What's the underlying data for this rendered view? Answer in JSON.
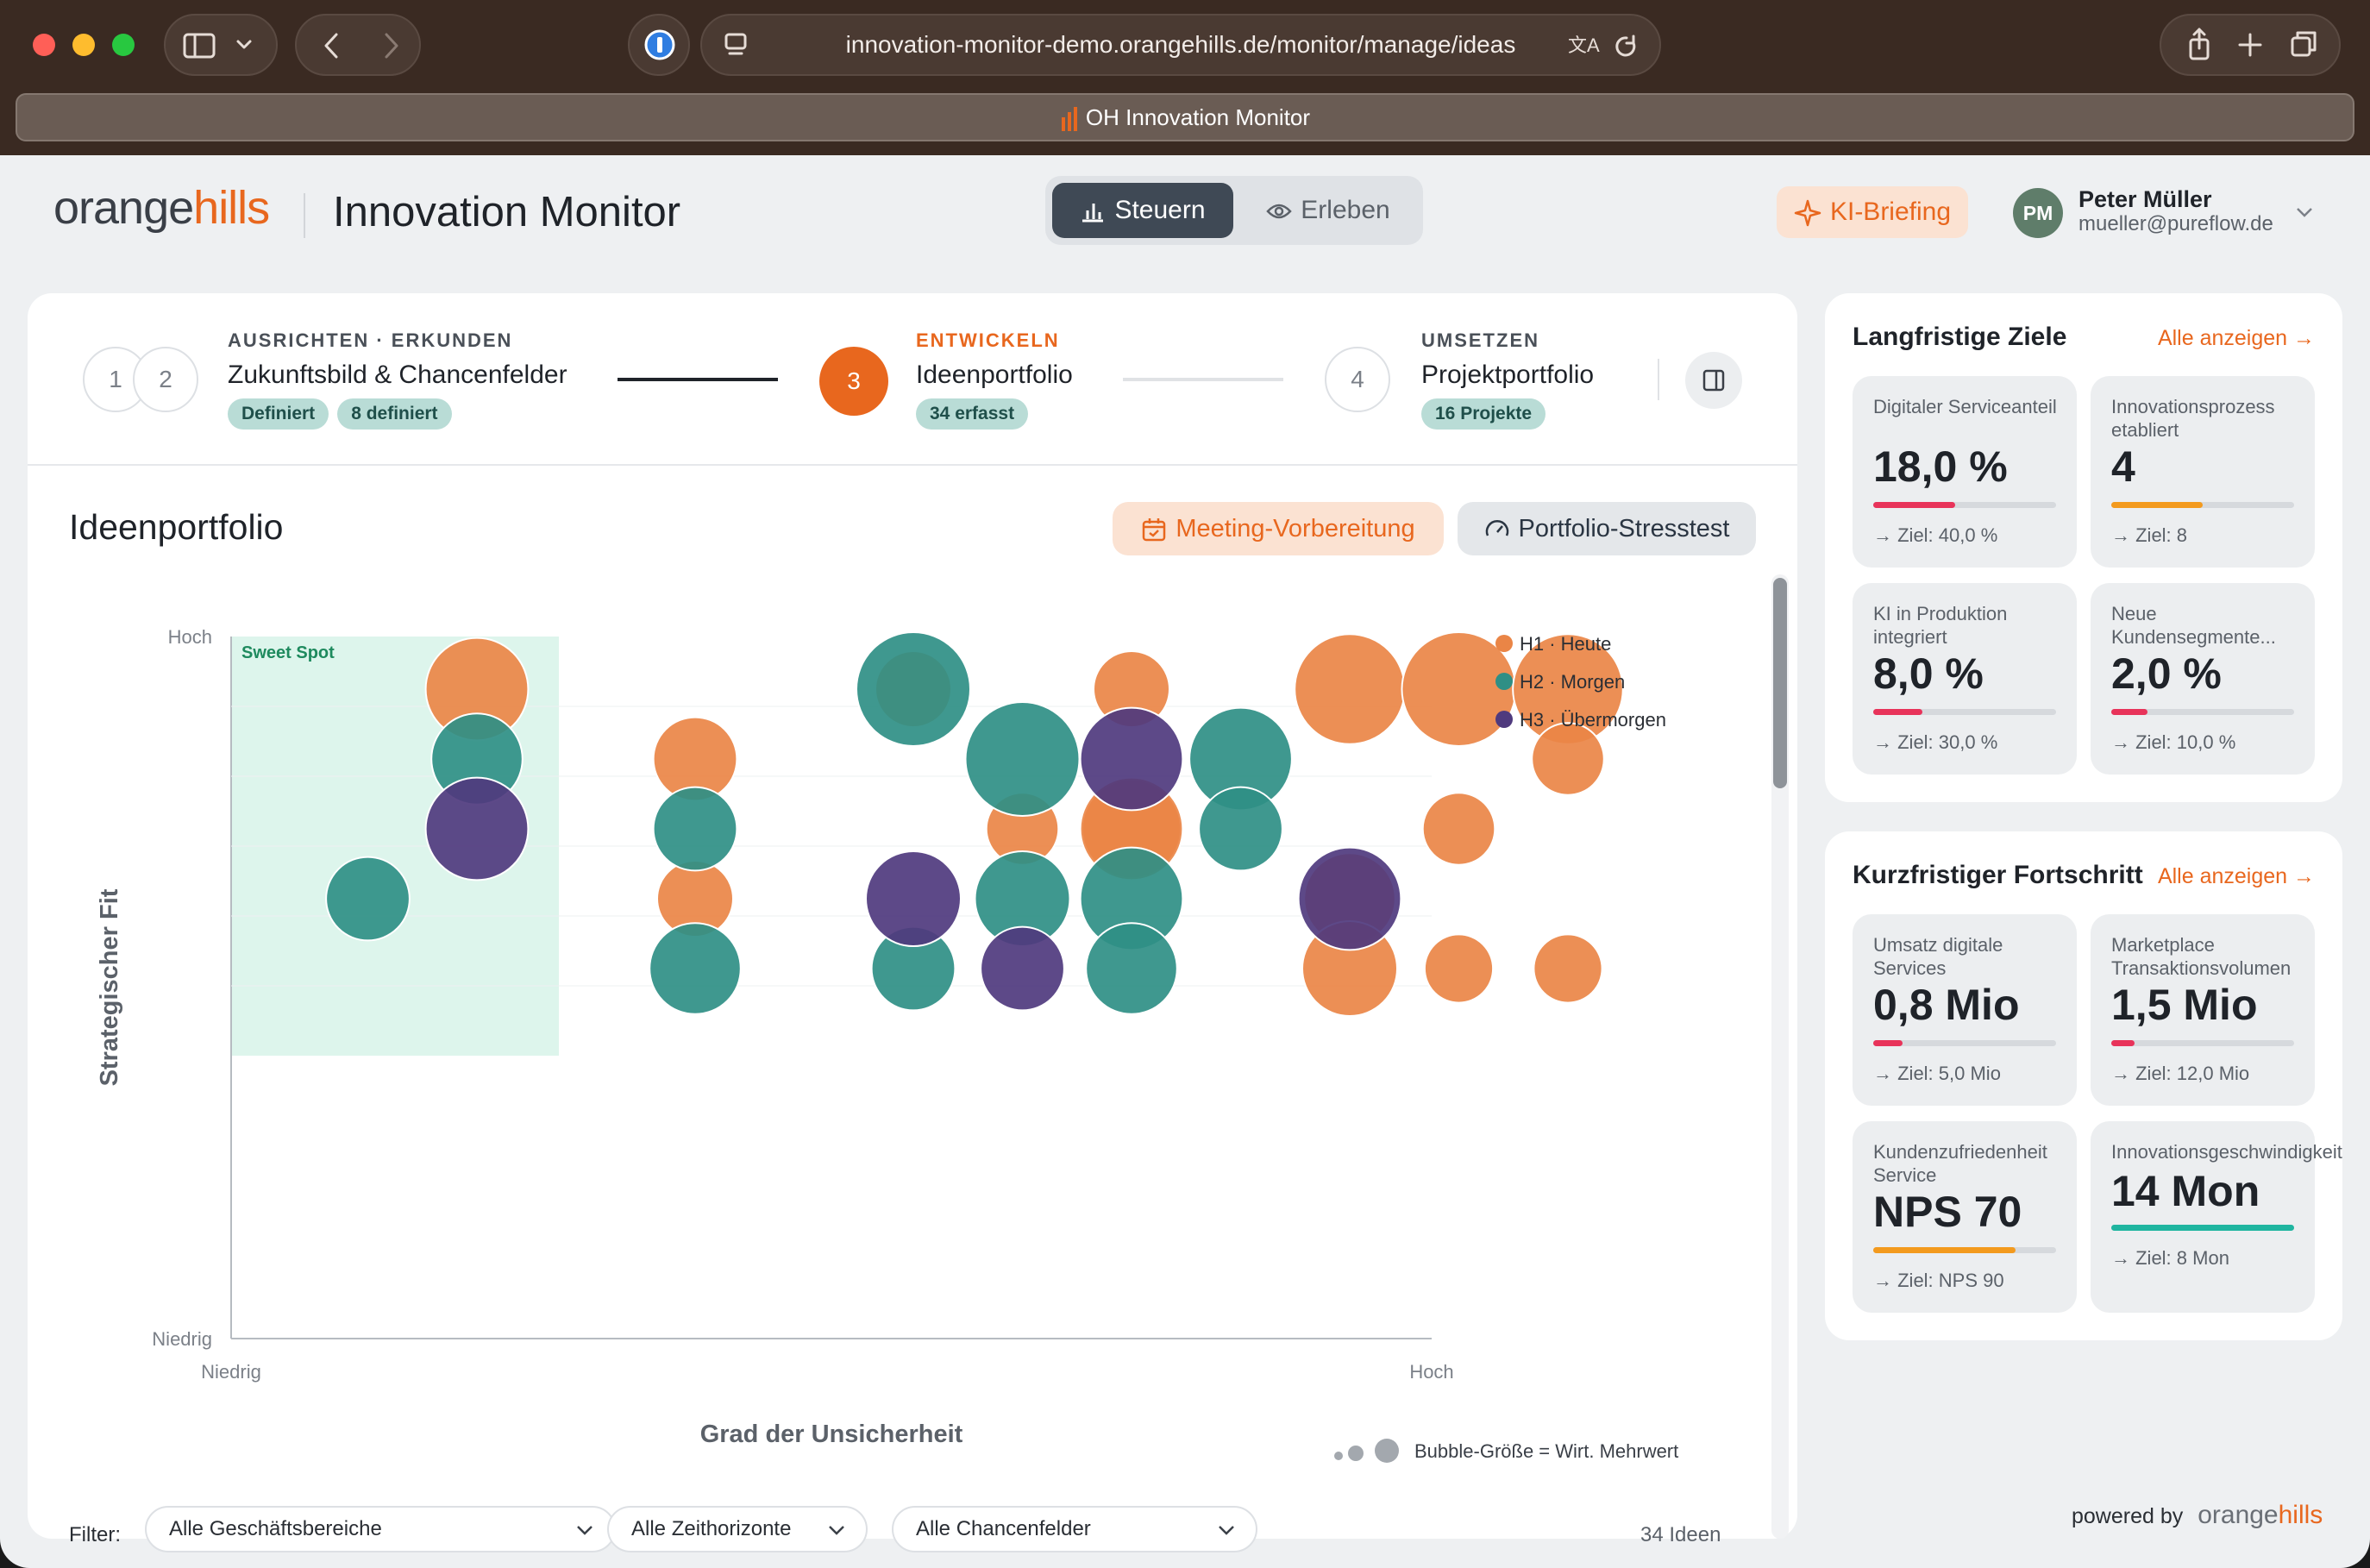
{
  "browser": {
    "url": "innovation-monitor-demo.orangehills.de/monitor/manage/ideas",
    "tab_title": "OH Innovation Monitor"
  },
  "header": {
    "logo_orange": "orange",
    "logo_hills": "hills",
    "app_title": "Innovation Monitor",
    "toggle_steuern": "Steuern",
    "toggle_erleben": "Erleben",
    "ki_briefing": "KI-Briefing",
    "user_initials": "PM",
    "user_name": "Peter Müller",
    "user_email": "mueller@pureflow.de"
  },
  "stepper": {
    "step1": "1",
    "step2": "2",
    "step12_label": "AUSRICHTEN · ERKUNDEN",
    "step12_title": "Zukunftsbild & Chancenfelder",
    "step12_pill1": "Definiert",
    "step12_pill2": "8 definiert",
    "step3": "3",
    "step3_label": "ENTWICKELN",
    "step3_title": "Ideenportfolio",
    "step3_pill": "34 erfasst",
    "step4": "4",
    "step4_label": "UMSETZEN",
    "step4_title": "Projektportfolio",
    "step4_pill": "16 Projekte"
  },
  "portfolio": {
    "title": "Ideenportfolio",
    "btn_meeting": "Meeting-Vorbereitung",
    "btn_stress": "Portfolio-Stresstest",
    "bubble_note": "Bubble-Größe = Wirt. Mehrwert"
  },
  "filters": {
    "label": "Filter:",
    "f1": "Alle Geschäftsbereiche",
    "f2": "Alle Zeithorizonte",
    "f3": "Alle Chancenfelder",
    "count": "34 Ideen"
  },
  "colors": {
    "h1": "#ea8546",
    "h2": "#2f8f85",
    "h3": "#4f3a7e",
    "accent": "#e8671e"
  },
  "chart_data": {
    "type": "scatter",
    "xlabel": "Grad der Unsicherheit",
    "ylabel": "Strategischer Fit",
    "x_ticks": [
      "Niedrig",
      "Hoch"
    ],
    "y_ticks": [
      "Hoch",
      "Niedrig"
    ],
    "annotation": "Sweet Spot",
    "legend": [
      "H1 · Heute",
      "H2 · Morgen",
      "H3 · Übermorgen"
    ],
    "series": [
      {
        "name": "H1 · Heute",
        "points": [
          [
            2,
            1,
            0.85
          ],
          [
            4,
            2,
            0.6
          ],
          [
            6,
            1,
            0.5
          ],
          [
            8,
            1,
            0.5
          ],
          [
            4,
            4,
            0.5
          ],
          [
            8,
            3,
            0.8
          ],
          [
            10,
            1,
            0.95
          ],
          [
            11,
            1,
            1
          ],
          [
            12,
            1,
            0.95
          ],
          [
            12,
            2,
            0.45
          ],
          [
            7,
            3,
            0.45
          ],
          [
            8,
            3,
            0.85
          ],
          [
            10,
            4,
            0.7
          ],
          [
            10,
            5,
            0.75
          ],
          [
            11,
            3,
            0.45
          ],
          [
            11,
            5,
            0.4
          ],
          [
            12,
            5,
            0.4
          ]
        ]
      },
      {
        "name": "H2 · Morgen",
        "points": [
          [
            2,
            2,
            0.7
          ],
          [
            4,
            3,
            0.6
          ],
          [
            1,
            4,
            0.6
          ],
          [
            6,
            1,
            1
          ],
          [
            7,
            2,
            1
          ],
          [
            9,
            2,
            0.85
          ],
          [
            9,
            3,
            0.6
          ],
          [
            7,
            4,
            0.75
          ],
          [
            8,
            4,
            0.85
          ],
          [
            4,
            5,
            0.7
          ],
          [
            6,
            5,
            0.6
          ],
          [
            8,
            5,
            0.7
          ]
        ]
      },
      {
        "name": "H3 · Übermorgen",
        "points": [
          [
            2,
            3,
            0.85
          ],
          [
            8,
            2,
            0.85
          ],
          [
            6,
            4,
            0.75
          ],
          [
            10,
            4,
            0.85
          ],
          [
            7,
            5,
            0.6
          ]
        ]
      }
    ]
  },
  "right": {
    "long_title": "Langfristige Ziele",
    "long_link": "Alle anzeigen →",
    "short_title": "Kurzfristiger Fortschritt",
    "short_link": "Alle anzeigen →",
    "kpis": [
      {
        "label": "Digitaler Serviceanteil",
        "value": "18,0 %",
        "goal": "→ Ziel: 40,0 %",
        "progress": 0.45,
        "color": "#e8335a"
      },
      {
        "label": "Innovationsprozess etabliert",
        "value": "4",
        "goal": "→ Ziel: 8",
        "progress": 0.5,
        "color": "#f39a1e"
      },
      {
        "label": "KI in Produktion integriert",
        "value": "8,0 %",
        "goal": "→ Ziel: 30,0 %",
        "progress": 0.27,
        "color": "#e8335a"
      },
      {
        "label": "Neue Kundensegmente...",
        "value": "2,0 %",
        "goal": "→ Ziel: 10,0 %",
        "progress": 0.2,
        "color": "#e8335a"
      },
      {
        "label": "Umsatz digitale Services",
        "value": "0,8 Mio",
        "goal": "→ Ziel: 5,0 Mio",
        "progress": 0.16,
        "color": "#e8335a"
      },
      {
        "label": "Marketplace Transaktionsvolumen",
        "value": "1,5 Mio",
        "goal": "→ Ziel: 12,0 Mio",
        "progress": 0.125,
        "color": "#e8335a"
      },
      {
        "label": "Kundenzufriedenheit Service",
        "value": "NPS 70",
        "goal": "→ Ziel: NPS 90",
        "progress": 0.78,
        "color": "#f39a1e"
      },
      {
        "label": "Innovationsgeschwindigkeit",
        "value": "14 Mon",
        "goal": "→ Ziel: 8 Mon",
        "progress": 1.0,
        "color": "#1fb5a0"
      }
    ]
  },
  "footer": {
    "powered": "powered by",
    "orange": "orange",
    "hills": "hills"
  }
}
